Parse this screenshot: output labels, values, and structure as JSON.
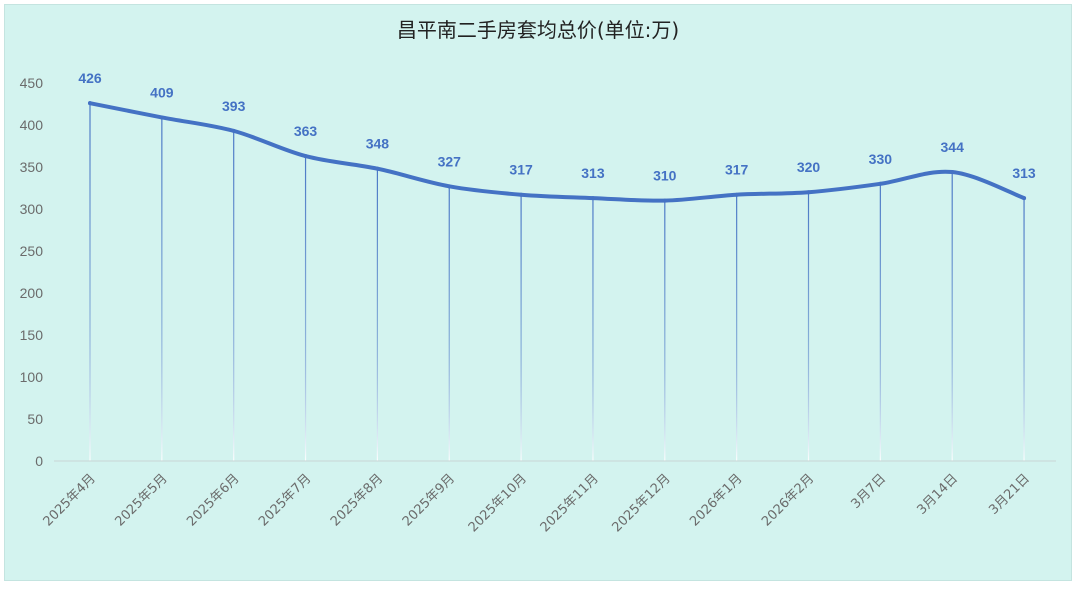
{
  "chart_data": {
    "type": "line",
    "title": "昌平南二手房套均总价(单位:万)",
    "categories": [
      "2025年4月",
      "2025年5月",
      "2025年6月",
      "2025年7月",
      "2025年8月",
      "2025年9月",
      "2025年10月",
      "2025年11月",
      "2025年12月",
      "2026年1月",
      "2026年2月",
      "3月7日",
      "3月14日",
      "3月21日"
    ],
    "series": [
      {
        "values": [
          426,
          409,
          393,
          363,
          348,
          327,
          317,
          313,
          310,
          317,
          320,
          330,
          344,
          313
        ]
      }
    ],
    "ylim": [
      0,
      450
    ],
    "yticks": [
      0,
      50,
      100,
      150,
      200,
      250,
      300,
      350,
      400,
      450
    ],
    "smooth": true,
    "data_labels": true,
    "drop_lines": true,
    "grid": false,
    "legend": "none",
    "colors": {
      "line": "#4472c4",
      "background": "#d3f3ef"
    }
  }
}
